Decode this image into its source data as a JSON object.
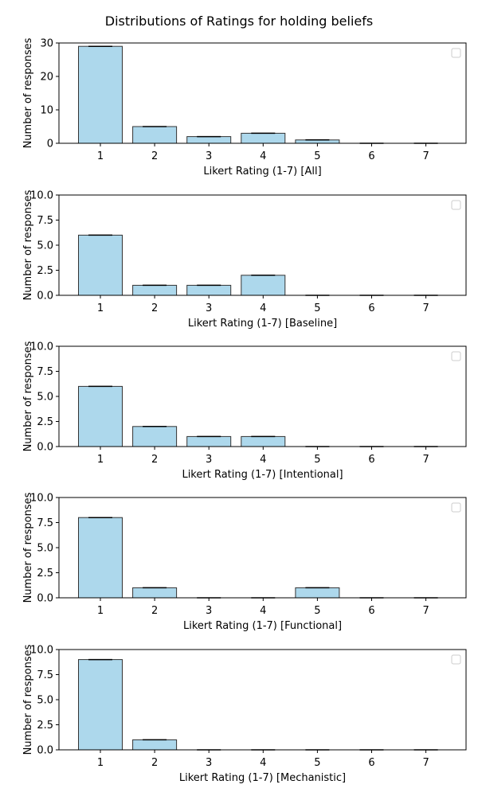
{
  "figure": {
    "title": "Distributions of Ratings for holding beliefs"
  },
  "colors": {
    "bar_fill": "#add8ec",
    "bar_edge": "#333333",
    "error": "#000000",
    "legend_edge": "#cccccc"
  },
  "chart_data": [
    {
      "type": "bar",
      "xlabel": "Likert Rating (1-7) [All]",
      "ylabel": "Number of responses",
      "categories": [
        "1",
        "2",
        "3",
        "4",
        "5",
        "6",
        "7"
      ],
      "values": [
        29,
        5,
        2,
        3,
        1,
        0,
        0
      ],
      "ylim": [
        0,
        30
      ],
      "yticks": [
        "0",
        "10",
        "20",
        "30"
      ],
      "legend": "top-right"
    },
    {
      "type": "bar",
      "xlabel": "Likert Rating (1-7) [Baseline]",
      "ylabel": "Number of responses",
      "categories": [
        "1",
        "2",
        "3",
        "4",
        "5",
        "6",
        "7"
      ],
      "values": [
        6,
        1,
        1,
        2,
        0,
        0,
        0
      ],
      "ylim": [
        0,
        10
      ],
      "yticks": [
        "0.0",
        "2.5",
        "5.0",
        "7.5",
        "10.0"
      ],
      "legend": "top-right"
    },
    {
      "type": "bar",
      "xlabel": "Likert Rating (1-7) [Intentional]",
      "ylabel": "Number of responses",
      "categories": [
        "1",
        "2",
        "3",
        "4",
        "5",
        "6",
        "7"
      ],
      "values": [
        6,
        2,
        1,
        1,
        0,
        0,
        0
      ],
      "ylim": [
        0,
        10
      ],
      "yticks": [
        "0.0",
        "2.5",
        "5.0",
        "7.5",
        "10.0"
      ],
      "legend": "top-right"
    },
    {
      "type": "bar",
      "xlabel": "Likert Rating (1-7) [Functional]",
      "ylabel": "Number of responses",
      "categories": [
        "1",
        "2",
        "3",
        "4",
        "5",
        "6",
        "7"
      ],
      "values": [
        8,
        1,
        0,
        0,
        1,
        0,
        0
      ],
      "ylim": [
        0,
        10
      ],
      "yticks": [
        "0.0",
        "2.5",
        "5.0",
        "7.5",
        "10.0"
      ],
      "legend": "top-right"
    },
    {
      "type": "bar",
      "xlabel": "Likert Rating (1-7) [Mechanistic]",
      "ylabel": "Number of responses",
      "categories": [
        "1",
        "2",
        "3",
        "4",
        "5",
        "6",
        "7"
      ],
      "values": [
        9,
        1,
        0,
        0,
        0,
        0,
        0
      ],
      "ylim": [
        0,
        10
      ],
      "yticks": [
        "0.0",
        "2.5",
        "5.0",
        "7.5",
        "10.0"
      ],
      "legend": "top-right"
    }
  ]
}
